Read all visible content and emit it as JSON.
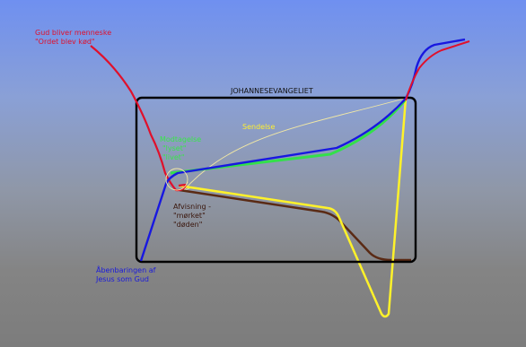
{
  "colors": {
    "red": "#e0102b",
    "blue": "#1818e0",
    "green": "#33e04a",
    "yellow": "#fff22a",
    "brown": "#5a2a14",
    "black": "#000000",
    "pale_yellow": "#f3e9a4"
  },
  "labels": {
    "incarnation": [
      "Gud bliver menneske",
      "\"Ordet blev kød\""
    ],
    "title": "JOHANNESEVANGELIET",
    "sending": "Sendelse",
    "reception": [
      "Modtagelse",
      "\"lyset\"",
      "\"livet\""
    ],
    "rejection": [
      "Afvisning -",
      "\"mørket\"",
      "\"døden\""
    ],
    "revelation": [
      "Åbenbaringen af",
      "Jesus som Gud"
    ]
  }
}
